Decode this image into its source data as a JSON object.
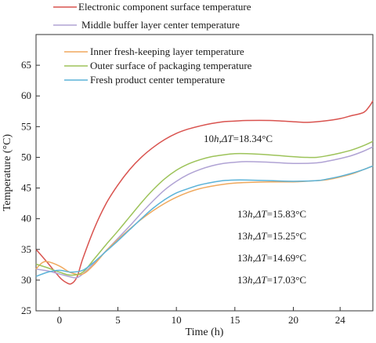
{
  "chart_data": {
    "type": "line",
    "xlabel": "Time (h)",
    "ylabel": "Temperature (°C)",
    "xlim": [
      -2,
      26.8
    ],
    "ylim": [
      25,
      70
    ],
    "xticks": [
      0,
      5,
      10,
      15,
      20,
      24
    ],
    "yticks": [
      25,
      30,
      35,
      40,
      45,
      50,
      55,
      60,
      65
    ],
    "grid": false,
    "legend_position": "top-left",
    "series": [
      {
        "name": "Electronic component surface temperature",
        "color": "#d9534f",
        "points": [
          [
            -2,
            35.0
          ],
          [
            -1,
            32.8
          ],
          [
            0,
            30.5
          ],
          [
            0.5,
            29.7
          ],
          [
            1,
            29.4
          ],
          [
            1.5,
            30.5
          ],
          [
            2,
            33.5
          ],
          [
            3,
            38.5
          ],
          [
            4,
            42.5
          ],
          [
            5,
            45.5
          ],
          [
            6,
            48.0
          ],
          [
            7,
            50.0
          ],
          [
            8,
            51.6
          ],
          [
            9,
            52.9
          ],
          [
            10,
            53.9
          ],
          [
            11,
            54.6
          ],
          [
            12,
            55.1
          ],
          [
            13,
            55.5
          ],
          [
            14,
            55.8
          ],
          [
            15,
            55.9
          ],
          [
            16,
            56.0
          ],
          [
            18,
            56.0
          ],
          [
            20,
            55.8
          ],
          [
            21,
            55.7
          ],
          [
            22,
            55.8
          ],
          [
            23,
            56.0
          ],
          [
            24,
            56.3
          ],
          [
            25,
            56.8
          ],
          [
            26,
            57.3
          ],
          [
            26.5,
            58.3
          ],
          [
            26.8,
            59.2
          ]
        ]
      },
      {
        "name": "Middle buffer layer center temperature",
        "color": "#b0a3d4",
        "points": [
          [
            -2,
            31.8
          ],
          [
            -1,
            31.5
          ],
          [
            0,
            31.0
          ],
          [
            1,
            30.5
          ],
          [
            1.5,
            30.4
          ],
          [
            2,
            31.0
          ],
          [
            3,
            32.8
          ],
          [
            4,
            34.8
          ],
          [
            5,
            36.8
          ],
          [
            6,
            38.8
          ],
          [
            7,
            40.9
          ],
          [
            8,
            42.9
          ],
          [
            9,
            44.7
          ],
          [
            10,
            46.1
          ],
          [
            11,
            47.2
          ],
          [
            12,
            48.0
          ],
          [
            13,
            48.6
          ],
          [
            14,
            49.0
          ],
          [
            15,
            49.2
          ],
          [
            16,
            49.3
          ],
          [
            18,
            49.2
          ],
          [
            20,
            49.0
          ],
          [
            22,
            49.1
          ],
          [
            23,
            49.4
          ],
          [
            24,
            49.8
          ],
          [
            25,
            50.3
          ],
          [
            26,
            51.0
          ],
          [
            26.8,
            51.7
          ]
        ]
      },
      {
        "name": "Inner fresh-keeping layer temperature",
        "color": "#f0a95e",
        "points": [
          [
            -2,
            31.8
          ],
          [
            -1.5,
            32.8
          ],
          [
            -1,
            33.0
          ],
          [
            0,
            32.3
          ],
          [
            1,
            31.2
          ],
          [
            2,
            31.0
          ],
          [
            3,
            32.6
          ],
          [
            4,
            34.8
          ],
          [
            5,
            36.6
          ],
          [
            6,
            38.3
          ],
          [
            7,
            39.9
          ],
          [
            8,
            41.3
          ],
          [
            9,
            42.5
          ],
          [
            10,
            43.5
          ],
          [
            11,
            44.3
          ],
          [
            12,
            44.9
          ],
          [
            13,
            45.3
          ],
          [
            14,
            45.6
          ],
          [
            15,
            45.8
          ],
          [
            16,
            45.9
          ],
          [
            18,
            46.0
          ],
          [
            20,
            46.0
          ],
          [
            22,
            46.2
          ],
          [
            23,
            46.4
          ],
          [
            24,
            46.8
          ],
          [
            25,
            47.3
          ],
          [
            26,
            48.0
          ],
          [
            26.8,
            48.6
          ]
        ]
      },
      {
        "name": "Outer surface of packaging temperature",
        "color": "#9dc35a",
        "points": [
          [
            -2,
            32.6
          ],
          [
            -1,
            32.0
          ],
          [
            0,
            31.3
          ],
          [
            1,
            30.8
          ],
          [
            2,
            31.3
          ],
          [
            3,
            33.5
          ],
          [
            4,
            35.8
          ],
          [
            5,
            38.0
          ],
          [
            6,
            40.3
          ],
          [
            7,
            42.6
          ],
          [
            8,
            44.7
          ],
          [
            9,
            46.5
          ],
          [
            10,
            47.9
          ],
          [
            11,
            48.9
          ],
          [
            12,
            49.6
          ],
          [
            13,
            50.1
          ],
          [
            14,
            50.4
          ],
          [
            15,
            50.6
          ],
          [
            16,
            50.6
          ],
          [
            18,
            50.4
          ],
          [
            20,
            50.1
          ],
          [
            21,
            50.0
          ],
          [
            22,
            50.0
          ],
          [
            23,
            50.3
          ],
          [
            24,
            50.7
          ],
          [
            25,
            51.2
          ],
          [
            26,
            51.9
          ],
          [
            26.8,
            52.6
          ]
        ]
      },
      {
        "name": "Fresh product center temperature",
        "color": "#5bb3d8",
        "points": [
          [
            -2,
            30.6
          ],
          [
            -1,
            31.3
          ],
          [
            0,
            31.6
          ],
          [
            1,
            31.3
          ],
          [
            2,
            31.6
          ],
          [
            3,
            33.0
          ],
          [
            4,
            34.7
          ],
          [
            5,
            36.4
          ],
          [
            6,
            38.2
          ],
          [
            7,
            40.0
          ],
          [
            8,
            41.7
          ],
          [
            9,
            43.1
          ],
          [
            10,
            44.2
          ],
          [
            11,
            44.9
          ],
          [
            12,
            45.5
          ],
          [
            13,
            45.9
          ],
          [
            14,
            46.2
          ],
          [
            15,
            46.3
          ],
          [
            16,
            46.3
          ],
          [
            18,
            46.2
          ],
          [
            20,
            46.1
          ],
          [
            22,
            46.2
          ],
          [
            23,
            46.5
          ],
          [
            24,
            46.9
          ],
          [
            25,
            47.4
          ],
          [
            26,
            48.0
          ],
          [
            26.8,
            48.6
          ]
        ]
      }
    ],
    "annotations": [
      {
        "text_prefix": "10",
        "text_suffix": "=18.34°C"
      },
      {
        "text_prefix": "13",
        "text_suffix": "=15.83°C"
      },
      {
        "text_prefix": "13",
        "text_suffix": "=15.25°C"
      },
      {
        "text_prefix": "13",
        "text_suffix": "=14.69°C"
      },
      {
        "text_prefix": "13",
        "text_suffix": "=17.03°C"
      }
    ],
    "annotation_letter_h": "h",
    "annotation_delta": "ΔT"
  }
}
